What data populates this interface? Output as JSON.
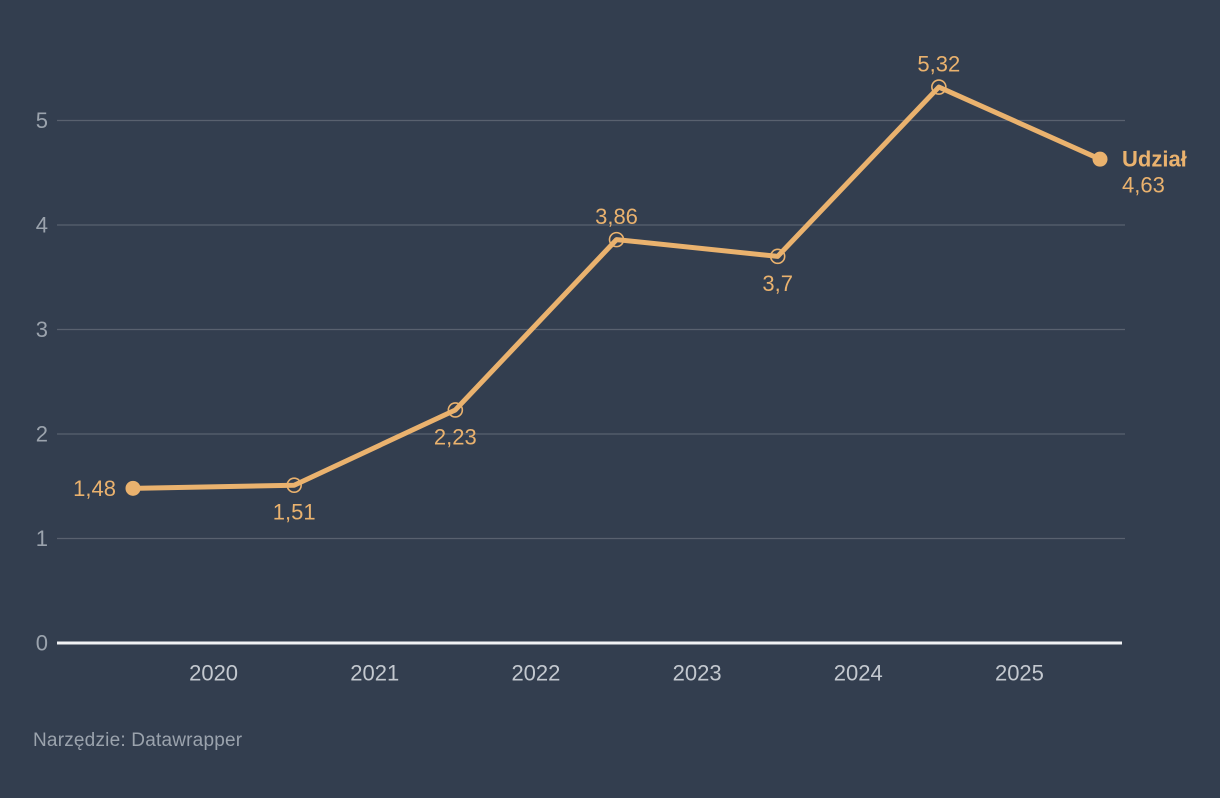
{
  "colors": {
    "background": "#333e4f",
    "accent_line": "#eab26e",
    "gridline": "#59616f",
    "y_tick_text": "#9ba3ad",
    "x_tick_text": "#c3c8cf",
    "axis_line": "#f1f2f4",
    "footer_text": "#9ba3ad"
  },
  "footer": {
    "text": "Narzędzie: Datawrapper"
  },
  "chart_data": {
    "type": "line",
    "title": "",
    "xlabel": "",
    "ylabel": "",
    "x_tick_labels": [
      "2020",
      "2021",
      "2022",
      "2023",
      "2024",
      "2025"
    ],
    "y_tick_labels": [
      "0",
      "1",
      "2",
      "3",
      "4",
      "5"
    ],
    "y_ticks": [
      0,
      1,
      2,
      3,
      4,
      5
    ],
    "ylim": [
      0,
      5.6
    ],
    "grid": "horizontal",
    "legend_position": "right-of-last-point",
    "series": [
      {
        "name": "Udział",
        "values": [
          1.48,
          1.51,
          2.23,
          3.86,
          3.7,
          5.32,
          4.63
        ],
        "value_labels": [
          "1,48",
          "1,51",
          "2,23",
          "3,86",
          "3,7",
          "5,32",
          "4,63"
        ],
        "last_value_label": "4,63"
      }
    ]
  }
}
